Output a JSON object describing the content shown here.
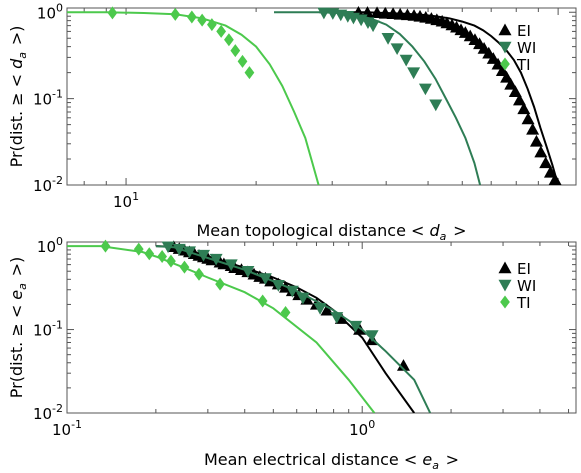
{
  "chart_data": [
    {
      "type": "line",
      "xlabel": "Mean topological distance < d_a >",
      "ylabel": "Pr(dist. ≥ < d_a >)",
      "xscale": "log",
      "yscale": "log",
      "xlim": [
        7.3,
        110
      ],
      "ylim": [
        0.01,
        1.12
      ],
      "x_tick_labels": [
        {
          "value": 10,
          "label": "10^1"
        }
      ],
      "y_tick_labels": [
        {
          "value": 0.01,
          "label": "10^-2"
        },
        {
          "value": 0.1,
          "label": "10^-1"
        },
        {
          "value": 1,
          "label": "10^0"
        }
      ],
      "legend": {
        "position": "top-right",
        "entries": [
          "EI",
          "WI",
          "TI"
        ]
      },
      "series": [
        {
          "name": "EI",
          "color": "#000000",
          "marker": "triangle-up",
          "x": [
            28,
            36,
            40,
            44,
            48,
            52,
            56,
            60,
            64,
            67,
            70,
            73,
            76,
            79,
            82,
            85,
            88,
            91,
            94,
            97,
            100
          ],
          "y": [
            1.0,
            1.0,
            0.98,
            0.96,
            0.94,
            0.9,
            0.85,
            0.78,
            0.7,
            0.62,
            0.53,
            0.44,
            0.36,
            0.28,
            0.2,
            0.13,
            0.08,
            0.046,
            0.028,
            0.017,
            0.01
          ],
          "marker_x": [
            34.5,
            36.2,
            38.1,
            39.8,
            41.5,
            43.1,
            44.8,
            46.4,
            47.9,
            49.4,
            50.9,
            52.4,
            53.9,
            55.3,
            56.8,
            58.2,
            59.6,
            61.0,
            62.6,
            64.2,
            65.8,
            67.4,
            69.1,
            70.8,
            72.6,
            74.3,
            76.0,
            77.7,
            79.6,
            81.4,
            83.3,
            85.2,
            87.3,
            89.1,
            91.2,
            93.6,
            96.0,
            98.4
          ],
          "marker_y": [
            0.995,
            0.99,
            0.985,
            0.97,
            0.96,
            0.945,
            0.93,
            0.915,
            0.895,
            0.87,
            0.845,
            0.815,
            0.785,
            0.75,
            0.71,
            0.67,
            0.625,
            0.58,
            0.53,
            0.48,
            0.43,
            0.38,
            0.335,
            0.29,
            0.25,
            0.21,
            0.176,
            0.146,
            0.12,
            0.096,
            0.076,
            0.058,
            0.044,
            0.032,
            0.024,
            0.018,
            0.014,
            0.0115
          ]
        },
        {
          "name": "WI",
          "color": "#2e7d55",
          "marker": "triangle-down",
          "x": [
            22,
            28,
            31,
            34,
            37,
            40,
            43,
            46,
            49,
            52,
            55,
            58,
            61,
            64,
            66
          ],
          "y": [
            1.0,
            1.0,
            0.98,
            0.93,
            0.84,
            0.72,
            0.56,
            0.4,
            0.27,
            0.17,
            0.1,
            0.06,
            0.035,
            0.018,
            0.01
          ],
          "marker_x": [
            28.7,
            30.1,
            31.4,
            32.6,
            33.6,
            35.0,
            36.3,
            37.3,
            40.4,
            42.4,
            44.5,
            46.3,
            49.3,
            52.1
          ],
          "marker_y": [
            0.985,
            0.97,
            0.935,
            0.9,
            0.86,
            0.82,
            0.76,
            0.7,
            0.5,
            0.38,
            0.28,
            0.2,
            0.13,
            0.085
          ]
        },
        {
          "name": "TI",
          "color": "#4cc94c",
          "marker": "diamond",
          "x": [
            7.3,
            9,
            11,
            13,
            15,
            17,
            18.5,
            20,
            21.5,
            23,
            24.5,
            26,
            27,
            27.9
          ],
          "y": [
            1.0,
            1.0,
            0.98,
            0.95,
            0.85,
            0.7,
            0.55,
            0.4,
            0.25,
            0.14,
            0.07,
            0.035,
            0.018,
            0.01
          ],
          "marker_x": [
            9.3,
            13.0,
            14.2,
            15.0,
            15.8,
            16.6,
            17.3,
            17.9,
            18.6,
            19.3
          ],
          "marker_y": [
            0.985,
            0.945,
            0.88,
            0.81,
            0.72,
            0.6,
            0.48,
            0.36,
            0.27,
            0.2
          ]
        }
      ]
    },
    {
      "type": "line",
      "xlabel": "Mean electrical distance < e_a >",
      "ylabel": "Pr(dist. ≥ < e_a >)",
      "xscale": "log",
      "yscale": "log",
      "xlim": [
        0.1,
        5.3
      ],
      "ylim": [
        0.01,
        1.12
      ],
      "x_tick_labels": [
        {
          "value": 0.1,
          "label": "10^-1"
        },
        {
          "value": 1,
          "label": "10^0"
        }
      ],
      "y_tick_labels": [
        {
          "value": 0.01,
          "label": "10^-2"
        },
        {
          "value": 0.1,
          "label": "10^-1"
        },
        {
          "value": 1,
          "label": "10^0"
        }
      ],
      "legend": {
        "position": "top-right",
        "entries": [
          "EI",
          "WI",
          "TI"
        ]
      },
      "series": [
        {
          "name": "EI",
          "color": "#000000",
          "marker": "triangle-up",
          "x": [
            0.2,
            0.23,
            0.3,
            0.4,
            0.5,
            0.6,
            0.7,
            0.8,
            1.0,
            1.2,
            1.5
          ],
          "y": [
            1.0,
            0.98,
            0.75,
            0.55,
            0.42,
            0.32,
            0.24,
            0.17,
            0.08,
            0.03,
            0.01
          ],
          "marker_x": [
            0.23,
            0.24,
            0.25,
            0.26,
            0.27,
            0.28,
            0.29,
            0.3,
            0.31,
            0.33,
            0.34,
            0.36,
            0.37,
            0.39,
            0.41,
            0.43,
            0.45,
            0.47,
            0.49,
            0.52,
            0.55,
            0.58,
            0.61,
            0.65,
            0.7,
            0.76,
            0.85,
            0.98,
            1.08,
            1.38
          ],
          "marker_y": [
            0.98,
            0.93,
            0.89,
            0.85,
            0.81,
            0.77,
            0.74,
            0.71,
            0.68,
            0.64,
            0.61,
            0.58,
            0.55,
            0.52,
            0.49,
            0.46,
            0.43,
            0.41,
            0.38,
            0.35,
            0.32,
            0.29,
            0.26,
            0.23,
            0.2,
            0.17,
            0.135,
            0.1,
            0.075,
            0.037
          ]
        },
        {
          "name": "WI",
          "color": "#2e7d55",
          "marker": "triangle-down",
          "x": [
            0.2,
            0.23,
            0.3,
            0.4,
            0.5,
            0.6,
            0.8,
            1.0,
            1.2,
            1.5,
            1.7
          ],
          "y": [
            1.0,
            0.97,
            0.72,
            0.52,
            0.38,
            0.29,
            0.17,
            0.1,
            0.055,
            0.025,
            0.01
          ],
          "marker_x": [
            0.22,
            0.24,
            0.26,
            0.29,
            0.32,
            0.36,
            0.41,
            0.47,
            0.52,
            0.58,
            0.63,
            0.72,
            0.82,
            0.95,
            1.08
          ],
          "marker_y": [
            0.985,
            0.92,
            0.86,
            0.78,
            0.7,
            0.6,
            0.5,
            0.41,
            0.34,
            0.29,
            0.24,
            0.18,
            0.14,
            0.11,
            0.085
          ]
        },
        {
          "name": "TI",
          "color": "#4cc94c",
          "marker": "diamond",
          "x": [
            0.1,
            0.13,
            0.18,
            0.2,
            0.25,
            0.3,
            0.4,
            0.5,
            0.7,
            0.9,
            1.1
          ],
          "y": [
            1.0,
            1.0,
            0.85,
            0.75,
            0.55,
            0.42,
            0.28,
            0.18,
            0.07,
            0.025,
            0.01
          ],
          "marker_x": [
            0.135,
            0.175,
            0.19,
            0.21,
            0.225,
            0.25,
            0.28,
            0.33,
            0.46,
            0.55
          ],
          "marker_y": [
            1.0,
            0.92,
            0.81,
            0.75,
            0.66,
            0.56,
            0.46,
            0.35,
            0.22,
            0.16
          ]
        }
      ]
    }
  ]
}
